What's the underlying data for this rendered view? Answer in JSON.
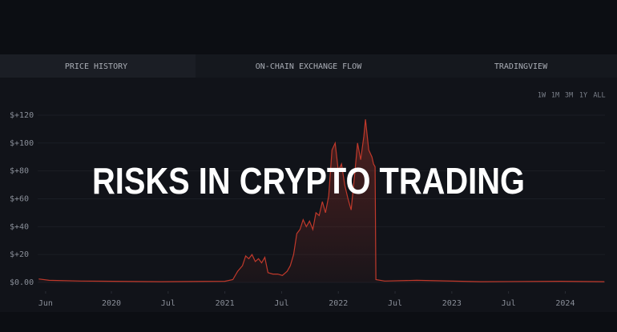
{
  "tabs": [
    "PRICE HISTORY",
    "ON-CHAIN EXCHANGE FLOW",
    "TRADINGVIEW"
  ],
  "range_buttons": [
    "1W",
    "1M",
    "3M",
    "1Y",
    "ALL"
  ],
  "overlay_title": "RISKS IN CRYPTO TRADING",
  "chart_data": {
    "type": "line",
    "color": "#c0392b",
    "grid": true,
    "x": [
      2019.359,
      2019.451,
      2019.732,
      2020.437,
      2021.0,
      2021.07,
      2021.113,
      2021.155,
      2021.183,
      2021.211,
      2021.239,
      2021.268,
      2021.296,
      2021.324,
      2021.352,
      2021.38,
      2021.423,
      2021.465,
      2021.507,
      2021.549,
      2021.577,
      2021.606,
      2021.634,
      2021.662,
      2021.69,
      2021.718,
      2021.746,
      2021.775,
      2021.803,
      2021.831,
      2021.859,
      2021.887,
      2021.915,
      2021.944,
      2021.972,
      2022.0,
      2022.028,
      2022.056,
      2022.085,
      2022.113,
      2022.141,
      2022.169,
      2022.197,
      2022.225,
      2022.239,
      2022.268,
      2022.296,
      2022.31,
      2022.324,
      2022.331,
      2022.408,
      2022.69,
      2023.254,
      2023.958,
      2024.345
    ],
    "values": [
      2.5,
      1.5,
      1.0,
      0.5,
      0.8,
      2,
      8,
      12,
      19,
      17,
      20,
      15,
      17,
      14,
      18,
      7,
      6,
      6,
      5,
      8,
      12,
      20,
      35,
      38,
      45,
      40,
      44,
      38,
      50,
      48,
      58,
      50,
      62,
      95,
      100,
      80,
      85,
      70,
      60,
      52,
      75,
      100,
      88,
      105,
      117,
      95,
      90,
      85,
      83,
      2,
      1,
      1.5,
      0.5,
      0.8,
      0.5
    ],
    "xlim": [
      2019.35,
      2024.35
    ],
    "xticks": [
      {
        "value": 2019.42,
        "label": "Jun"
      },
      2020,
      {
        "value": 2020.5,
        "label": "Jul"
      },
      2021,
      {
        "value": 2021.5,
        "label": "Jul"
      },
      2022,
      {
        "value": 2022.5,
        "label": "Jul"
      },
      2023,
      {
        "value": 2023.5,
        "label": "Jul"
      },
      2024
    ],
    "ylim": [
      -2,
      128
    ],
    "yticks": [
      {
        "value": 0,
        "label": "$0.00"
      },
      {
        "value": 20,
        "label": "$+20"
      },
      {
        "value": 40,
        "label": "$+40"
      },
      {
        "value": 60,
        "label": "$+60"
      },
      {
        "value": 80,
        "label": "$+80"
      },
      {
        "value": 100,
        "label": "$+100"
      },
      {
        "value": 120,
        "label": "$+120"
      }
    ]
  }
}
